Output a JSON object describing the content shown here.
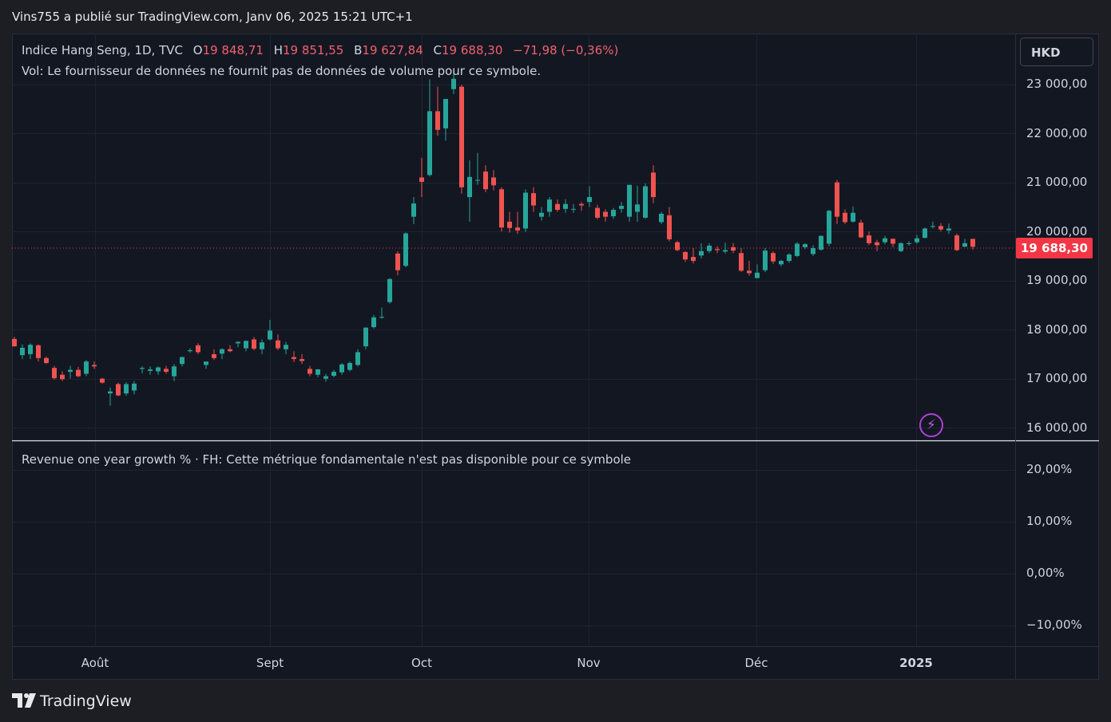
{
  "header": {
    "published": "Vins755 a publié sur TradingView.com, Janv 06, 2025 15:21 UTC+1"
  },
  "legend": {
    "symbol": "Indice Hang Seng, 1D, TVC",
    "o_label": "O",
    "o_value": "19 848,71",
    "h_label": "H",
    "h_value": "19 851,55",
    "b_label": "B",
    "b_value": "19 627,84",
    "c_label": "C",
    "c_value": "19 688,30",
    "change": "−71,98 (−0,36%)",
    "volume_note": "Vol: Le fournisseur de données ne fournit pas de données de volume pour ce symbole."
  },
  "indicator": {
    "label": "Revenue one year growth % · FH: Cette métrique fondamentale n'est pas disponible pour ce symbole"
  },
  "currency": "HKD",
  "last_price_tag": "19 688,30",
  "price_axis": [
    "23 000,00",
    "22 000,00",
    "21 000,00",
    "20 000,00",
    "19 000,00",
    "18 000,00",
    "17 000,00",
    "16 000,00"
  ],
  "indicator_axis": [
    "20,00%",
    "10,00%",
    "0,00%",
    "−10,00%"
  ],
  "time_axis": [
    "Août",
    "Sept",
    "Oct",
    "Nov",
    "Déc",
    "2025"
  ],
  "brand": "TradingView",
  "colors": {
    "up": "#26a69a",
    "down": "#ef5350",
    "background": "#131722",
    "grid": "#1f2330",
    "price_tag": "#f23645"
  },
  "chart_data": {
    "type": "candlestick",
    "title": "Indice Hang Seng, 1D, TVC",
    "ylim": [
      15750,
      23750
    ],
    "last_close": 19688.3,
    "series": [
      {
        "o": 17810,
        "h": 17850,
        "l": 17650,
        "c": 17660
      },
      {
        "o": 17480,
        "h": 17700,
        "l": 17400,
        "c": 17630
      },
      {
        "o": 17500,
        "h": 17720,
        "l": 17400,
        "c": 17690
      },
      {
        "o": 17680,
        "h": 17700,
        "l": 17350,
        "c": 17420
      },
      {
        "o": 17420,
        "h": 17450,
        "l": 17300,
        "c": 17320
      },
      {
        "o": 17220,
        "h": 17260,
        "l": 16980,
        "c": 17010
      },
      {
        "o": 17080,
        "h": 17150,
        "l": 16950,
        "c": 16990
      },
      {
        "o": 17140,
        "h": 17260,
        "l": 17000,
        "c": 17180
      },
      {
        "o": 17180,
        "h": 17240,
        "l": 17030,
        "c": 17050
      },
      {
        "o": 17100,
        "h": 17380,
        "l": 17050,
        "c": 17350
      },
      {
        "o": 17280,
        "h": 17350,
        "l": 17200,
        "c": 17250
      },
      {
        "o": 17000,
        "h": 17020,
        "l": 16900,
        "c": 16920
      },
      {
        "o": 16700,
        "h": 16820,
        "l": 16450,
        "c": 16740
      },
      {
        "o": 16890,
        "h": 16920,
        "l": 16640,
        "c": 16660
      },
      {
        "o": 16700,
        "h": 16930,
        "l": 16650,
        "c": 16890
      },
      {
        "o": 16760,
        "h": 16950,
        "l": 16680,
        "c": 16900
      },
      {
        "o": 17200,
        "h": 17250,
        "l": 17110,
        "c": 17220
      },
      {
        "o": 17160,
        "h": 17250,
        "l": 17080,
        "c": 17190
      },
      {
        "o": 17150,
        "h": 17250,
        "l": 17080,
        "c": 17230
      },
      {
        "o": 17200,
        "h": 17260,
        "l": 17100,
        "c": 17140
      },
      {
        "o": 17050,
        "h": 17300,
        "l": 16950,
        "c": 17250
      },
      {
        "o": 17300,
        "h": 17450,
        "l": 17250,
        "c": 17440
      },
      {
        "o": 17560,
        "h": 17620,
        "l": 17530,
        "c": 17580
      },
      {
        "o": 17680,
        "h": 17720,
        "l": 17500,
        "c": 17540
      },
      {
        "o": 17280,
        "h": 17350,
        "l": 17200,
        "c": 17350
      },
      {
        "o": 17500,
        "h": 17600,
        "l": 17380,
        "c": 17420
      },
      {
        "o": 17510,
        "h": 17620,
        "l": 17400,
        "c": 17600
      },
      {
        "o": 17600,
        "h": 17680,
        "l": 17540,
        "c": 17560
      },
      {
        "o": 17720,
        "h": 17760,
        "l": 17640,
        "c": 17750
      },
      {
        "o": 17620,
        "h": 17780,
        "l": 17560,
        "c": 17770
      },
      {
        "o": 17800,
        "h": 17850,
        "l": 17580,
        "c": 17610
      },
      {
        "o": 17600,
        "h": 17800,
        "l": 17500,
        "c": 17740
      },
      {
        "o": 17800,
        "h": 18200,
        "l": 17780,
        "c": 17980
      },
      {
        "o": 17780,
        "h": 17900,
        "l": 17580,
        "c": 17620
      },
      {
        "o": 17600,
        "h": 17750,
        "l": 17500,
        "c": 17690
      },
      {
        "o": 17440,
        "h": 17560,
        "l": 17340,
        "c": 17400
      },
      {
        "o": 17400,
        "h": 17500,
        "l": 17300,
        "c": 17360
      },
      {
        "o": 17200,
        "h": 17260,
        "l": 17050,
        "c": 17100
      },
      {
        "o": 17080,
        "h": 17200,
        "l": 17030,
        "c": 17190
      },
      {
        "o": 17000,
        "h": 17100,
        "l": 16940,
        "c": 17050
      },
      {
        "o": 17060,
        "h": 17180,
        "l": 17030,
        "c": 17140
      },
      {
        "o": 17130,
        "h": 17320,
        "l": 17080,
        "c": 17290
      },
      {
        "o": 17180,
        "h": 17350,
        "l": 17150,
        "c": 17320
      },
      {
        "o": 17280,
        "h": 17600,
        "l": 17250,
        "c": 17540
      },
      {
        "o": 17660,
        "h": 18050,
        "l": 17600,
        "c": 18040
      },
      {
        "o": 18050,
        "h": 18300,
        "l": 18020,
        "c": 18250
      },
      {
        "o": 18260,
        "h": 18450,
        "l": 18220,
        "c": 18260
      },
      {
        "o": 18560,
        "h": 19050,
        "l": 18530,
        "c": 19030
      },
      {
        "o": 19550,
        "h": 19600,
        "l": 19110,
        "c": 19210
      },
      {
        "o": 19300,
        "h": 19980,
        "l": 19270,
        "c": 19960
      },
      {
        "o": 20300,
        "h": 20700,
        "l": 20150,
        "c": 20570
      },
      {
        "o": 21100,
        "h": 21500,
        "l": 20700,
        "c": 21010
      },
      {
        "o": 21150,
        "h": 23100,
        "l": 21120,
        "c": 22450
      },
      {
        "o": 22450,
        "h": 22950,
        "l": 21950,
        "c": 22070
      },
      {
        "o": 22100,
        "h": 22700,
        "l": 21850,
        "c": 22700
      },
      {
        "o": 22900,
        "h": 23250,
        "l": 22800,
        "c": 23110
      },
      {
        "o": 22950,
        "h": 22990,
        "l": 20770,
        "c": 20900
      },
      {
        "o": 20700,
        "h": 21450,
        "l": 20200,
        "c": 21110
      },
      {
        "o": 21050,
        "h": 21600,
        "l": 20950,
        "c": 21050
      },
      {
        "o": 21220,
        "h": 21350,
        "l": 20800,
        "c": 20860
      },
      {
        "o": 21100,
        "h": 21250,
        "l": 20840,
        "c": 20940
      },
      {
        "o": 20860,
        "h": 20900,
        "l": 20000,
        "c": 20080
      },
      {
        "o": 20200,
        "h": 20400,
        "l": 19980,
        "c": 20070
      },
      {
        "o": 20080,
        "h": 20400,
        "l": 19950,
        "c": 20020
      },
      {
        "o": 20060,
        "h": 20860,
        "l": 19990,
        "c": 20790
      },
      {
        "o": 20780,
        "h": 20900,
        "l": 20400,
        "c": 20530
      },
      {
        "o": 20300,
        "h": 20500,
        "l": 20220,
        "c": 20380
      },
      {
        "o": 20400,
        "h": 20700,
        "l": 20300,
        "c": 20650
      },
      {
        "o": 20560,
        "h": 20650,
        "l": 20400,
        "c": 20440
      },
      {
        "o": 20460,
        "h": 20660,
        "l": 20380,
        "c": 20560
      },
      {
        "o": 20460,
        "h": 20560,
        "l": 20380,
        "c": 20460
      },
      {
        "o": 20560,
        "h": 20600,
        "l": 20420,
        "c": 20530
      },
      {
        "o": 20600,
        "h": 20920,
        "l": 20500,
        "c": 20700
      },
      {
        "o": 20480,
        "h": 20540,
        "l": 20250,
        "c": 20280
      },
      {
        "o": 20400,
        "h": 20450,
        "l": 20200,
        "c": 20300
      },
      {
        "o": 20310,
        "h": 20480,
        "l": 20260,
        "c": 20440
      },
      {
        "o": 20460,
        "h": 20600,
        "l": 20380,
        "c": 20520
      },
      {
        "o": 20300,
        "h": 20950,
        "l": 20200,
        "c": 20950
      },
      {
        "o": 20400,
        "h": 20930,
        "l": 20200,
        "c": 20550
      },
      {
        "o": 20280,
        "h": 20980,
        "l": 20260,
        "c": 20920
      },
      {
        "o": 21200,
        "h": 21350,
        "l": 20580,
        "c": 20700
      },
      {
        "o": 20190,
        "h": 20400,
        "l": 20150,
        "c": 20360
      },
      {
        "o": 20330,
        "h": 20500,
        "l": 19800,
        "c": 19840
      },
      {
        "o": 19780,
        "h": 19810,
        "l": 19600,
        "c": 19620
      },
      {
        "o": 19580,
        "h": 19600,
        "l": 19380,
        "c": 19430
      },
      {
        "o": 19480,
        "h": 19660,
        "l": 19350,
        "c": 19400
      },
      {
        "o": 19510,
        "h": 19760,
        "l": 19450,
        "c": 19600
      },
      {
        "o": 19600,
        "h": 19760,
        "l": 19560,
        "c": 19710
      },
      {
        "o": 19640,
        "h": 19700,
        "l": 19560,
        "c": 19620
      },
      {
        "o": 19590,
        "h": 19770,
        "l": 19550,
        "c": 19620
      },
      {
        "o": 19680,
        "h": 19760,
        "l": 19560,
        "c": 19610
      },
      {
        "o": 19560,
        "h": 19660,
        "l": 19180,
        "c": 19200
      },
      {
        "o": 19200,
        "h": 19400,
        "l": 19100,
        "c": 19150
      },
      {
        "o": 19050,
        "h": 19330,
        "l": 19050,
        "c": 19160
      },
      {
        "o": 19210,
        "h": 19660,
        "l": 19170,
        "c": 19610
      },
      {
        "o": 19560,
        "h": 19600,
        "l": 19340,
        "c": 19390
      },
      {
        "o": 19330,
        "h": 19420,
        "l": 19290,
        "c": 19400
      },
      {
        "o": 19400,
        "h": 19560,
        "l": 19360,
        "c": 19530
      },
      {
        "o": 19500,
        "h": 19780,
        "l": 19480,
        "c": 19750
      },
      {
        "o": 19680,
        "h": 19760,
        "l": 19640,
        "c": 19740
      },
      {
        "o": 19540,
        "h": 19720,
        "l": 19500,
        "c": 19660
      },
      {
        "o": 19630,
        "h": 19920,
        "l": 19610,
        "c": 19910
      },
      {
        "o": 19750,
        "h": 20440,
        "l": 19700,
        "c": 20420
      },
      {
        "o": 21000,
        "h": 21050,
        "l": 20150,
        "c": 20300
      },
      {
        "o": 20380,
        "h": 20450,
        "l": 20150,
        "c": 20190
      },
      {
        "o": 20200,
        "h": 20510,
        "l": 20180,
        "c": 20380
      },
      {
        "o": 20180,
        "h": 20240,
        "l": 19870,
        "c": 19880
      },
      {
        "o": 19920,
        "h": 20000,
        "l": 19720,
        "c": 19760
      },
      {
        "o": 19780,
        "h": 19830,
        "l": 19600,
        "c": 19720
      },
      {
        "o": 19780,
        "h": 19910,
        "l": 19740,
        "c": 19860
      },
      {
        "o": 19850,
        "h": 19860,
        "l": 19680,
        "c": 19750
      },
      {
        "o": 19600,
        "h": 19780,
        "l": 19580,
        "c": 19760
      },
      {
        "o": 19760,
        "h": 19800,
        "l": 19710,
        "c": 19760
      },
      {
        "o": 19780,
        "h": 19930,
        "l": 19750,
        "c": 19860
      },
      {
        "o": 19870,
        "h": 20080,
        "l": 19860,
        "c": 20060
      },
      {
        "o": 20100,
        "h": 20200,
        "l": 20060,
        "c": 20110
      },
      {
        "o": 20110,
        "h": 20170,
        "l": 20000,
        "c": 20040
      },
      {
        "o": 20020,
        "h": 20160,
        "l": 19950,
        "c": 20060
      },
      {
        "o": 19920,
        "h": 19960,
        "l": 19600,
        "c": 19620
      },
      {
        "o": 19690,
        "h": 19850,
        "l": 19680,
        "c": 19760
      },
      {
        "o": 19848.71,
        "h": 19851.55,
        "l": 19627.84,
        "c": 19688.3
      }
    ]
  }
}
